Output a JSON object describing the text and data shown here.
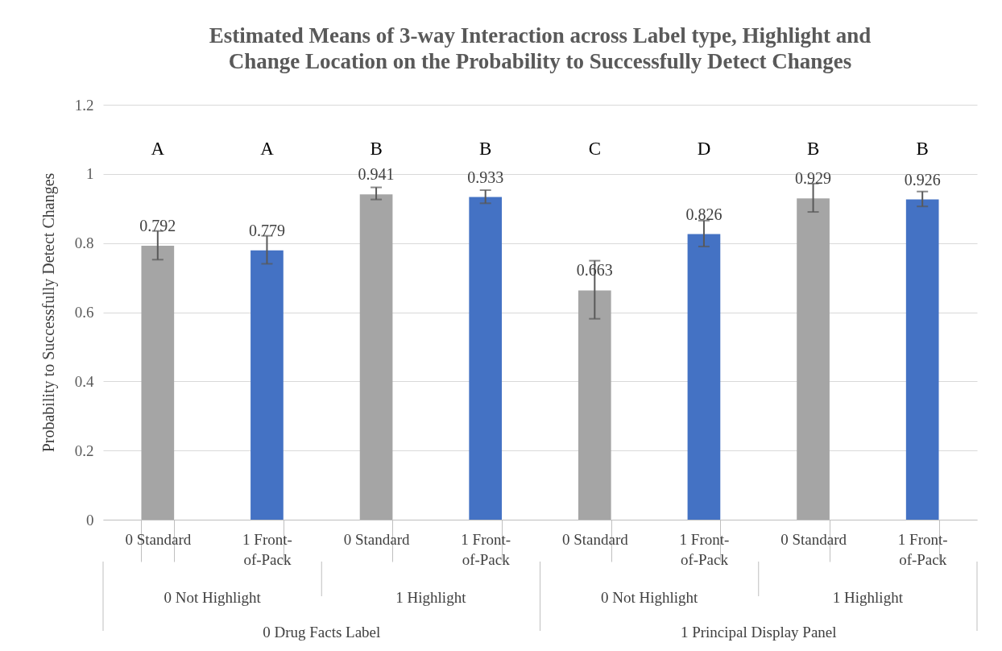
{
  "chart_data": {
    "type": "bar",
    "title": "Estimated Means of 3-way Interaction across Label type, Highlight and Change Location on the Probability to Successfully Detect Changes",
    "ylabel": "Probability to Successfully Detect Changes",
    "categories": [
      "0 Standard",
      "1 Front-of-Pack",
      "0 Standard",
      "1 Front-of-Pack",
      "0 Standard",
      "1 Front-of-Pack",
      "0 Standard",
      "1 Front-of-Pack"
    ],
    "values": [
      0.792,
      0.779,
      0.941,
      0.933,
      0.663,
      0.826,
      0.929,
      0.926
    ],
    "colors": [
      "#a5a5a5",
      "#4472c4",
      "#a5a5a5",
      "#4472c4",
      "#a5a5a5",
      "#4472c4",
      "#a5a5a5",
      "#4472c4"
    ],
    "errors": [
      [
        0.752,
        0.835
      ],
      [
        0.74,
        0.821
      ],
      [
        0.926,
        0.961
      ],
      [
        0.915,
        0.953
      ],
      [
        0.581,
        0.749
      ],
      [
        0.79,
        0.865
      ],
      [
        0.89,
        0.972
      ],
      [
        0.906,
        0.949
      ]
    ],
    "data_labels": true,
    "ylim": [
      0,
      1.2
    ],
    "yticks": [
      0,
      0.2,
      0.4,
      0.6,
      0.8,
      1,
      1.2
    ],
    "grid": "y",
    "annotations": [
      "A",
      "A",
      "B",
      "B",
      "C",
      "D",
      "B",
      "B",
      "0 Not Highlight",
      "1 Highlight",
      "0 Not Highlight",
      "1 Highlight",
      "0 Drug Facts Label",
      "1 Principal Display Panel"
    ]
  }
}
